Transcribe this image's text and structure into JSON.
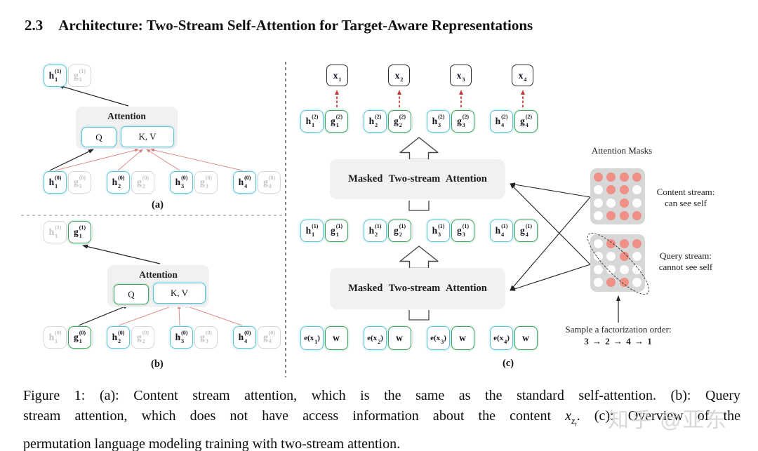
{
  "heading": {
    "number": "2.3",
    "title": "Architecture: Two-Stream Self-Attention for Target-Aware Representations"
  },
  "colors": {
    "h_stream_border": "#5ec4d6",
    "g_stream_border": "#3ea35f",
    "faded_border": "#d6d6d6",
    "mask_bg": "#d7d7d7",
    "mask_dot_visible": "#ef8f85",
    "red_connector": "#de8f8f",
    "red_dashed_arrow": "#c43c3c",
    "attention_bg": "#f1f1f1"
  },
  "panel_a": {
    "label": "(a)",
    "attention_label": "Attention",
    "q_label": "Q",
    "kv_label": "K, V",
    "top_tokens": [
      {
        "base": "h",
        "sub": "1",
        "sup": "(1)",
        "variant": "cyan"
      },
      {
        "base": "g",
        "sub": "1",
        "sup": "(1)",
        "variant": "faded"
      }
    ],
    "bottom_tokens": [
      {
        "base": "h",
        "sub": "1",
        "sup": "(0)",
        "variant": "cyan"
      },
      {
        "base": "g",
        "sub": "1",
        "sup": "(0)",
        "variant": "faded"
      },
      {
        "base": "h",
        "sub": "2",
        "sup": "(0)",
        "variant": "cyan"
      },
      {
        "base": "g",
        "sub": "2",
        "sup": "(0)",
        "variant": "faded"
      },
      {
        "base": "h",
        "sub": "3",
        "sup": "(0)",
        "variant": "cyan"
      },
      {
        "base": "g",
        "sub": "3",
        "sup": "(0)",
        "variant": "faded"
      },
      {
        "base": "h",
        "sub": "4",
        "sup": "(0)",
        "variant": "cyan"
      },
      {
        "base": "g",
        "sub": "4",
        "sup": "(0)",
        "variant": "faded"
      }
    ]
  },
  "panel_b": {
    "label": "(b)",
    "attention_label": "Attention",
    "q_label": "Q",
    "kv_label": "K, V",
    "top_tokens": [
      {
        "base": "h",
        "sub": "1",
        "sup": "(1)",
        "variant": "faded"
      },
      {
        "base": "g",
        "sub": "1",
        "sup": "(1)",
        "variant": "green"
      }
    ],
    "bottom_tokens": [
      {
        "base": "h",
        "sub": "1",
        "sup": "(0)",
        "variant": "faded"
      },
      {
        "base": "g",
        "sub": "1",
        "sup": "(0)",
        "variant": "green"
      },
      {
        "base": "h",
        "sub": "2",
        "sup": "(0)",
        "variant": "cyan"
      },
      {
        "base": "g",
        "sub": "2",
        "sup": "(0)",
        "variant": "faded"
      },
      {
        "base": "h",
        "sub": "3",
        "sup": "(0)",
        "variant": "cyan"
      },
      {
        "base": "g",
        "sub": "3",
        "sup": "(0)",
        "variant": "faded"
      },
      {
        "base": "h",
        "sub": "4",
        "sup": "(0)",
        "variant": "cyan"
      },
      {
        "base": "g",
        "sub": "4",
        "sup": "(0)",
        "variant": "faded"
      }
    ]
  },
  "panel_c": {
    "label": "(c)",
    "attention_box_upper": "Masked Two-stream Attention",
    "attention_box_lower": "Masked Two-stream Attention",
    "x_tokens": [
      {
        "base": "x",
        "sub": "1",
        "variant": "xbox"
      },
      {
        "base": "x",
        "sub": "2",
        "variant": "xbox"
      },
      {
        "base": "x",
        "sub": "3",
        "variant": "xbox"
      },
      {
        "base": "x",
        "sub": "4",
        "variant": "xbox"
      }
    ],
    "layer2_tokens": [
      {
        "base": "h",
        "sub": "1",
        "sup": "(2)",
        "variant": "cyan"
      },
      {
        "base": "g",
        "sub": "1",
        "sup": "(2)",
        "variant": "green"
      },
      {
        "base": "h",
        "sub": "2",
        "sup": "(2)",
        "variant": "cyan"
      },
      {
        "base": "g",
        "sub": "2",
        "sup": "(2)",
        "variant": "green"
      },
      {
        "base": "h",
        "sub": "3",
        "sup": "(2)",
        "variant": "cyan"
      },
      {
        "base": "g",
        "sub": "3",
        "sup": "(2)",
        "variant": "green"
      },
      {
        "base": "h",
        "sub": "4",
        "sup": "(2)",
        "variant": "cyan"
      },
      {
        "base": "g",
        "sub": "4",
        "sup": "(2)",
        "variant": "green"
      }
    ],
    "layer1_tokens": [
      {
        "base": "h",
        "sub": "1",
        "sup": "(1)",
        "variant": "cyan"
      },
      {
        "base": "g",
        "sub": "1",
        "sup": "(1)",
        "variant": "green"
      },
      {
        "base": "h",
        "sub": "2",
        "sup": "(1)",
        "variant": "cyan"
      },
      {
        "base": "g",
        "sub": "2",
        "sup": "(1)",
        "variant": "green"
      },
      {
        "base": "h",
        "sub": "3",
        "sup": "(1)",
        "variant": "cyan"
      },
      {
        "base": "g",
        "sub": "3",
        "sup": "(1)",
        "variant": "green"
      },
      {
        "base": "h",
        "sub": "4",
        "sup": "(1)",
        "variant": "cyan"
      },
      {
        "base": "g",
        "sub": "4",
        "sup": "(1)",
        "variant": "green"
      }
    ],
    "input_tokens": [
      {
        "base": "e(x",
        "sub": "1",
        "suffix": ")",
        "variant": "cyan small"
      },
      {
        "base": "w",
        "variant": "green"
      },
      {
        "base": "e(x",
        "sub": "2",
        "suffix": ")",
        "variant": "cyan small"
      },
      {
        "base": "w",
        "variant": "green"
      },
      {
        "base": "e(x",
        "sub": "3",
        "suffix": ")",
        "variant": "cyan small"
      },
      {
        "base": "w",
        "variant": "green"
      },
      {
        "base": "e(x",
        "sub": "4",
        "suffix": ")",
        "variant": "cyan small"
      },
      {
        "base": "w",
        "variant": "green"
      }
    ]
  },
  "masks": {
    "title": "Attention Masks",
    "content": {
      "label_line1": "Content stream:",
      "label_line2": "can see self",
      "grid": [
        [
          1,
          1,
          1,
          1
        ],
        [
          0,
          1,
          1,
          0
        ],
        [
          0,
          0,
          1,
          0
        ],
        [
          0,
          1,
          1,
          1
        ]
      ]
    },
    "query": {
      "label_line1": "Query stream:",
      "label_line2": "cannot see self",
      "grid": [
        [
          0,
          1,
          1,
          1
        ],
        [
          0,
          0,
          1,
          0
        ],
        [
          0,
          0,
          0,
          0
        ],
        [
          0,
          1,
          1,
          0
        ]
      ]
    },
    "sample_order_line1": "Sample a factorization order:",
    "sample_order_line2": "3 → 2 → 4 → 1"
  },
  "caption": {
    "line1": "Figure 1: (a): Content stream attention, which is the same as the standard self-attention. (b): Query",
    "line2_pre": "stream attention, which does not have access information about the content ",
    "math_base": "x",
    "math_sub": "z",
    "math_subsub": "t",
    "line2_post": ". (c): Overview of the",
    "line3": "permutation language modeling training with two-stream attention."
  },
  "watermark": "知乎 @亚东"
}
